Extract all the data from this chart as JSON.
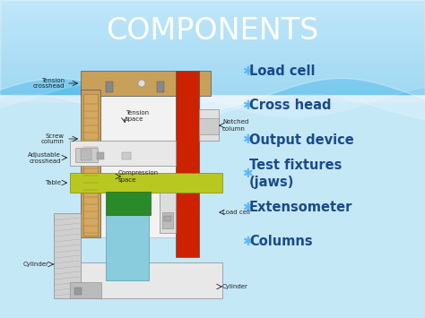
{
  "title": "COMPONENTS",
  "title_color": "#ffffff",
  "title_fontsize": 24,
  "bullet_items": [
    "Load cell",
    "Cross head",
    "Output device",
    "Test fixtures\n(jaws)",
    "Extensometer",
    "Columns"
  ],
  "bullet_color": "#1a4a8a",
  "bullet_fontsize": 10.5,
  "bullet_star_color": "#5bb8f5",
  "frame_color": "#c8a05a",
  "column_color_left": "#c8a05a",
  "column_color_right": "#cc2200",
  "table_color": "#b8c820",
  "green_color": "#2a8a2a",
  "cylinder_color": "#88ccdd",
  "bg_blue_top": "#3ab0e8",
  "bg_blue_bottom": "#7dcef5",
  "wave_color": "#ffffff",
  "slide_bg": "#d0eaf8"
}
